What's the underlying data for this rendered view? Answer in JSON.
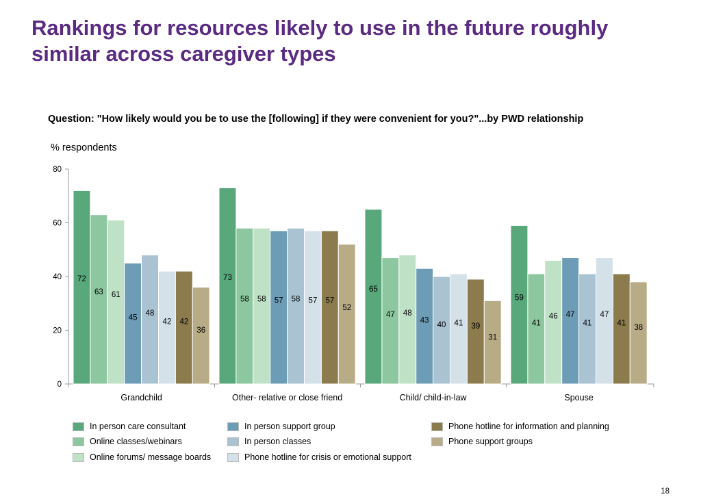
{
  "title": "Rankings for resources likely to use in the future roughly similar across caregiver types",
  "question": "Question: \"How likely would you be to use the [following] if they were convenient for you?\"...by PWD relationship",
  "page_number": "18",
  "chart_data": {
    "type": "bar",
    "ylabel": "% respondents",
    "ylim": [
      0,
      80
    ],
    "yticks": [
      0,
      20,
      40,
      60,
      80
    ],
    "grid": false,
    "legend_position": "bottom",
    "categories": [
      "Grandchild",
      "Other- relative or close friend",
      "Child/ child-in-law",
      "Spouse"
    ],
    "series": [
      {
        "name": "In person care consultant",
        "color": "#58a87c",
        "values": [
          72,
          73,
          65,
          59
        ]
      },
      {
        "name": "Online classes/webinars",
        "color": "#8dc79f",
        "values": [
          63,
          58,
          47,
          41
        ]
      },
      {
        "name": "Online forums/ message boards",
        "color": "#bfe2c7",
        "values": [
          61,
          58,
          48,
          46
        ]
      },
      {
        "name": "In person support group",
        "color": "#6d9cb6",
        "values": [
          45,
          57,
          43,
          47
        ]
      },
      {
        "name": "In person classes",
        "color": "#aac3d3",
        "values": [
          48,
          58,
          40,
          41
        ]
      },
      {
        "name": "Phone hotline for crisis or emotional support",
        "color": "#d4e1e9",
        "values": [
          42,
          57,
          41,
          47
        ]
      },
      {
        "name": "Phone hotline for information and planning",
        "color": "#8b7b4d",
        "values": [
          42,
          57,
          39,
          41
        ]
      },
      {
        "name": "Phone support groups",
        "color": "#b8ac86",
        "values": [
          36,
          52,
          31,
          38
        ]
      }
    ]
  }
}
